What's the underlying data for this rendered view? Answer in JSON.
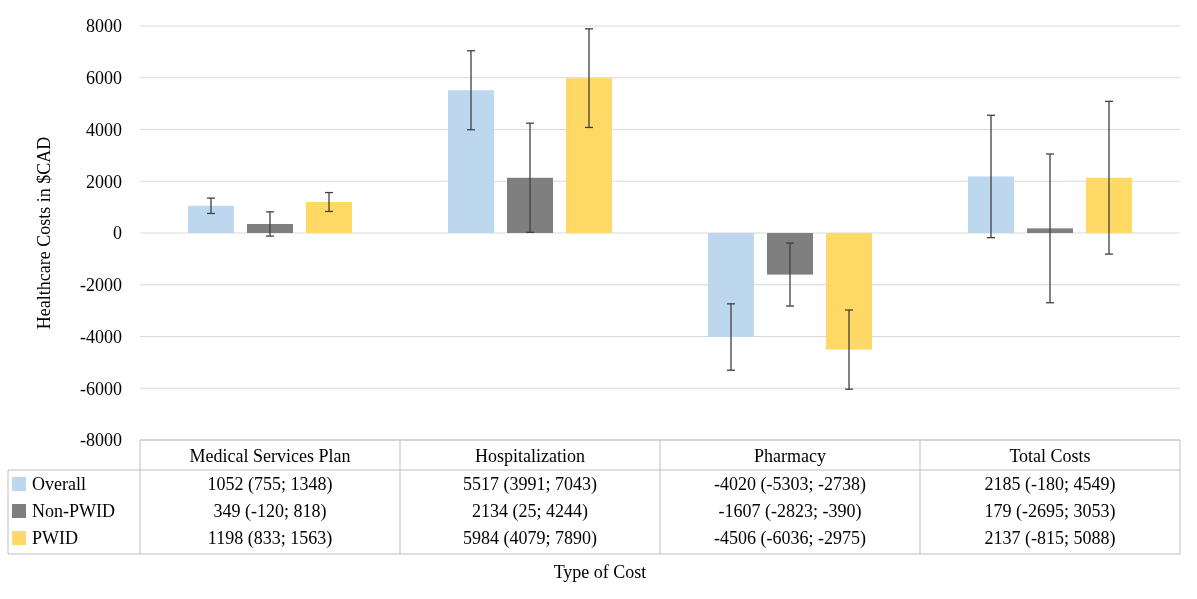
{
  "chart_data": {
    "type": "bar",
    "annotations": [
      "Type of Cost"
    ],
    "ylabel": "Healthcare Costs in $CAD",
    "categories": [
      "Medical Services Plan",
      "Hospitalization",
      "Pharmacy",
      "Total Costs"
    ],
    "series": [
      {
        "name": "Overall",
        "color": "#bdd7ee",
        "values": [
          1052,
          5517,
          -4020,
          2185
        ],
        "errors": [
          [
            755,
            1348
          ],
          [
            3991,
            7043
          ],
          [
            -5303,
            -2738
          ],
          [
            -180,
            4549
          ]
        ],
        "value_labels": [
          "1052 (755; 1348)",
          "5517 (3991; 7043)",
          "-4020 (-5303; -2738)",
          "2185 (-180; 4549)"
        ]
      },
      {
        "name": "Non-PWID",
        "color": "#7f7f7f",
        "values": [
          349,
          2134,
          -1607,
          179
        ],
        "errors": [
          [
            -120,
            818
          ],
          [
            25,
            4244
          ],
          [
            -2823,
            -390
          ],
          [
            -2695,
            3053
          ]
        ],
        "value_labels": [
          "349 (-120; 818)",
          "2134 (25; 4244)",
          "-1607 (-2823; -390)",
          "179 (-2695; 3053)"
        ]
      },
      {
        "name": "PWID",
        "color": "#ffd966",
        "values": [
          1198,
          5984,
          -4506,
          2137
        ],
        "errors": [
          [
            833,
            1563
          ],
          [
            4079,
            7890
          ],
          [
            -6036,
            -2975
          ],
          [
            -815,
            5088
          ]
        ],
        "value_labels": [
          "1198 (833; 1563)",
          "5984 (4079; 7890)",
          "-4506 (-6036; -2975)",
          "2137 (-815; 5088)"
        ]
      }
    ],
    "ylim": [
      -8000,
      8000
    ],
    "yticks": [
      -8000,
      -6000,
      -4000,
      -2000,
      0,
      2000,
      4000,
      6000,
      8000
    ],
    "grid": "y",
    "legend": "bottom"
  }
}
